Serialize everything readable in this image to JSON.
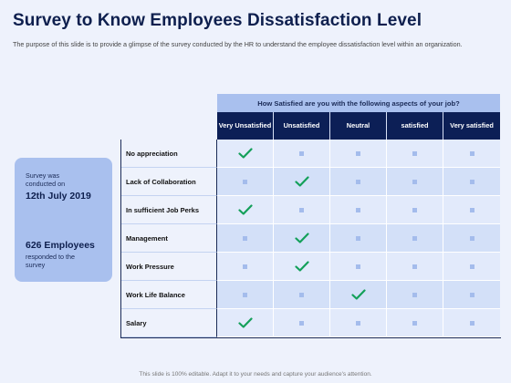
{
  "title": "Survey to Know Employees Dissatisfaction Level",
  "subtitle": "The purpose of this slide is to provide a glimpse of the survey conducted by the HR to understand the employee dissatisfaction level within an organization.",
  "info": {
    "conducted_label": "Survey was conducted on",
    "date": "12th July 2019",
    "employees": "626 Employees",
    "responded_label": "responded to the survey"
  },
  "question": "How Satisfied are you with the following aspects of your job?",
  "columns": [
    "Very Unsatisfied",
    "Unsatisfied",
    "Neutral",
    "satisfied",
    "Very satisfied"
  ],
  "rows": [
    {
      "label": "No appreciation",
      "selected": 0
    },
    {
      "label": "Lack of Collaboration",
      "selected": 1
    },
    {
      "label": "In sufficient Job Perks",
      "selected": 0
    },
    {
      "label": "Management",
      "selected": 1
    },
    {
      "label": "Work Pressure",
      "selected": 1
    },
    {
      "label": "Work Life Balance",
      "selected": 2
    },
    {
      "label": "Salary",
      "selected": 0
    }
  ],
  "colors": {
    "check": "#14a05a",
    "dot": "#a4bcec",
    "header": "#0c1f56"
  },
  "footer": "This slide is 100% editable. Adapt it to your needs and capture your audience's attention."
}
